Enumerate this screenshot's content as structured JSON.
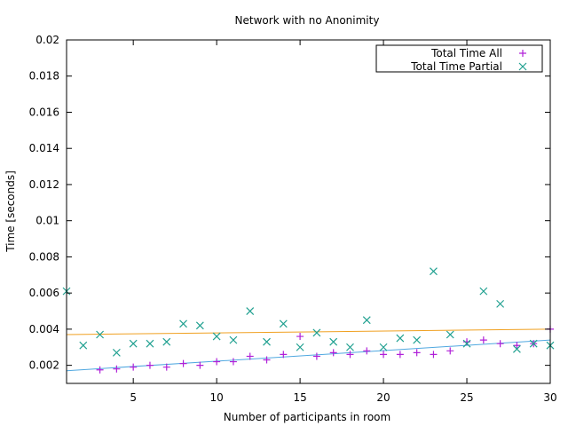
{
  "chart_data": {
    "type": "scatter",
    "title": "Network with no Anonimity",
    "xlabel": "Number of participants in room",
    "ylabel": "Time [seconds]",
    "xlim": [
      1,
      30
    ],
    "ylim": [
      0.001,
      0.02
    ],
    "xticks": [
      5,
      10,
      15,
      20,
      25,
      30
    ],
    "yticks": [
      0.002,
      0.004,
      0.006,
      0.008,
      0.01,
      0.012,
      0.014,
      0.016,
      0.018,
      0.02
    ],
    "grid": false,
    "legend_position": "top-right",
    "series": [
      {
        "name": "Total Time All",
        "marker": "plus",
        "color": "#b020d8",
        "points": [
          [
            3,
            0.00175
          ],
          [
            4,
            0.0018
          ],
          [
            5,
            0.0019
          ],
          [
            6,
            0.002
          ],
          [
            7,
            0.0019
          ],
          [
            8,
            0.0021
          ],
          [
            9,
            0.002
          ],
          [
            10,
            0.0022
          ],
          [
            11,
            0.0022
          ],
          [
            12,
            0.0025
          ],
          [
            13,
            0.0023
          ],
          [
            14,
            0.0026
          ],
          [
            15,
            0.0036
          ],
          [
            16,
            0.0025
          ],
          [
            17,
            0.0027
          ],
          [
            18,
            0.0026
          ],
          [
            19,
            0.0028
          ],
          [
            20,
            0.0026
          ],
          [
            21,
            0.0026
          ],
          [
            22,
            0.0027
          ],
          [
            23,
            0.0026
          ],
          [
            24,
            0.0028
          ],
          [
            25,
            0.0033
          ],
          [
            26,
            0.0034
          ],
          [
            27,
            0.0032
          ],
          [
            28,
            0.0031
          ],
          [
            29,
            0.0032
          ],
          [
            30,
            0.004
          ]
        ]
      },
      {
        "name": "Total Time Partial",
        "marker": "cross",
        "color": "#20a090",
        "points": [
          [
            1,
            0.0061
          ],
          [
            2,
            0.0031
          ],
          [
            3,
            0.0037
          ],
          [
            4,
            0.0027
          ],
          [
            5,
            0.0032
          ],
          [
            6,
            0.0032
          ],
          [
            7,
            0.0033
          ],
          [
            8,
            0.0043
          ],
          [
            9,
            0.0042
          ],
          [
            10,
            0.0036
          ],
          [
            11,
            0.0034
          ],
          [
            12,
            0.005
          ],
          [
            13,
            0.0033
          ],
          [
            14,
            0.0043
          ],
          [
            15,
            0.003
          ],
          [
            16,
            0.0038
          ],
          [
            17,
            0.0033
          ],
          [
            18,
            0.003
          ],
          [
            19,
            0.0045
          ],
          [
            20,
            0.003
          ],
          [
            21,
            0.0035
          ],
          [
            22,
            0.0034
          ],
          [
            23,
            0.0072
          ],
          [
            24,
            0.0037
          ],
          [
            25,
            0.0032
          ],
          [
            26,
            0.0061
          ],
          [
            27,
            0.0054
          ],
          [
            28,
            0.0029
          ],
          [
            29,
            0.0032
          ],
          [
            30,
            0.0031
          ]
        ]
      }
    ],
    "fit_lines": [
      {
        "color": "#f0a020",
        "x": [
          1,
          30
        ],
        "y": [
          0.0037,
          0.004
        ]
      },
      {
        "color": "#50a8e0",
        "x": [
          1,
          30
        ],
        "y": [
          0.0017,
          0.0034
        ]
      }
    ]
  }
}
